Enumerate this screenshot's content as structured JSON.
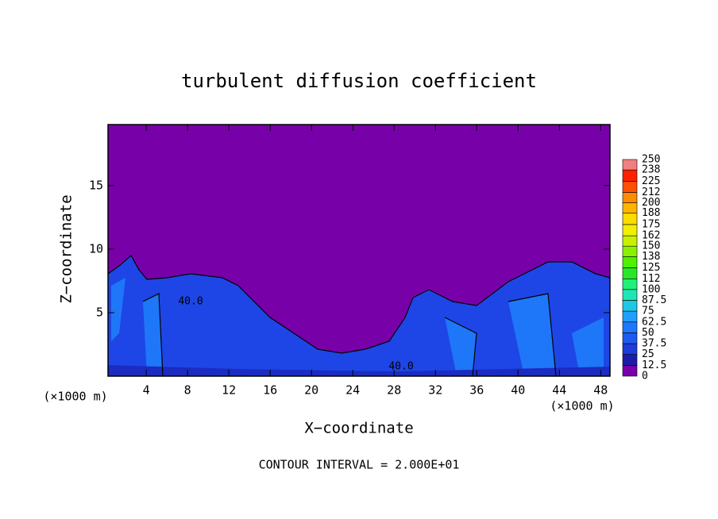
{
  "chart_data": {
    "type": "contour",
    "title": "turbulent diffusion coefficient",
    "xlabel": "X−coordinate",
    "ylabel": "Z−coordinate",
    "x_unit_left": "(×1000 m)",
    "x_unit_right": "(×1000 m)",
    "footnote": "CONTOUR INTERVAL = 2.000E+01",
    "contour_labels": [
      "40.0",
      "40.0"
    ],
    "xlim": [
      0.3,
      48.9
    ],
    "ylim": [
      0,
      19.8
    ],
    "xticks": [
      4,
      8,
      12,
      16,
      20,
      24,
      28,
      32,
      36,
      40,
      44,
      48
    ],
    "yticks": [
      5,
      10,
      15
    ],
    "colorbar": {
      "levels": [
        0,
        12.5,
        25,
        37.5,
        50,
        62.5,
        75,
        87.5,
        100,
        112,
        125,
        138,
        150,
        162,
        175,
        188,
        200,
        212,
        225,
        238,
        250
      ],
      "colors": [
        "#7800a8",
        "#1c1ca8",
        "#1e3cd8",
        "#1e5af0",
        "#1e78ff",
        "#1ea0ff",
        "#1ec8e6",
        "#1ee6b4",
        "#1ef078",
        "#28e628",
        "#50f000",
        "#8cf000",
        "#c8f000",
        "#f0f000",
        "#ffdc00",
        "#ffb400",
        "#ff8c00",
        "#ff5000",
        "#ff2000",
        "#f08080"
      ]
    }
  }
}
